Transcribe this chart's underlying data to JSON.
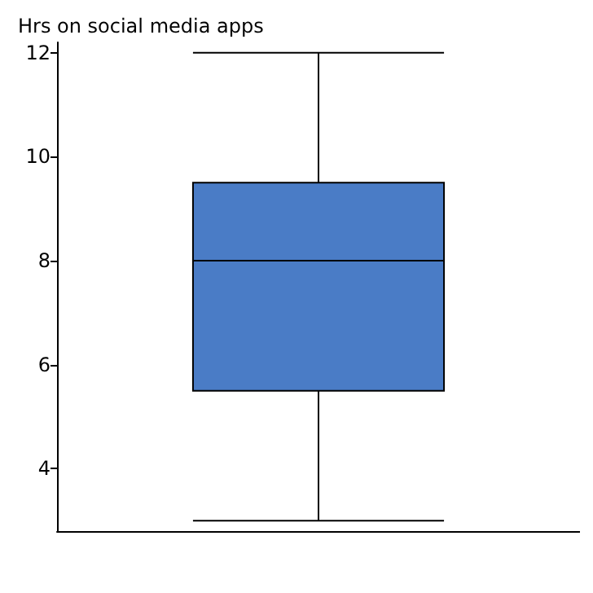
{
  "chart_data": {
    "type": "box",
    "ylabel": "Hrs on social media apps",
    "categories": [
      null
    ],
    "color": "#4a7cc6",
    "boxes": [
      {
        "low": 3,
        "q1": 5.5,
        "median": 8,
        "q3": 9.5,
        "high": 12
      }
    ],
    "ylim": [
      2.8,
      12.2
    ],
    "yticks": [
      4,
      6,
      8,
      10,
      12
    ],
    "grid": false
  }
}
